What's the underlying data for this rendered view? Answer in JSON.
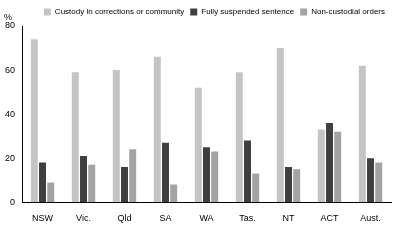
{
  "chart_data": {
    "type": "bar",
    "ylabel": "%",
    "categories": [
      "NSW",
      "Vic.",
      "Qld",
      "SA",
      "WA",
      "Tas.",
      "NT",
      "ACT",
      "Aust."
    ],
    "series": [
      {
        "name": "Custody in corrections or community",
        "color": "#c4c4c4",
        "values": [
          74,
          59,
          60,
          66,
          52,
          59,
          70,
          33,
          62
        ]
      },
      {
        "name": "Fully suspended sentence",
        "color": "#3f3f3f",
        "values": [
          18,
          21,
          16,
          27,
          25,
          28,
          16,
          36,
          20
        ]
      },
      {
        "name": "Non-custodial orders",
        "color": "#a3a3a3",
        "values": [
          9,
          17,
          24,
          8,
          23,
          13,
          15,
          32,
          18
        ]
      }
    ],
    "ylim": [
      0,
      80
    ],
    "yticks": [
      0,
      20,
      40,
      60,
      80
    ],
    "grid": false,
    "legend": "top-right"
  }
}
